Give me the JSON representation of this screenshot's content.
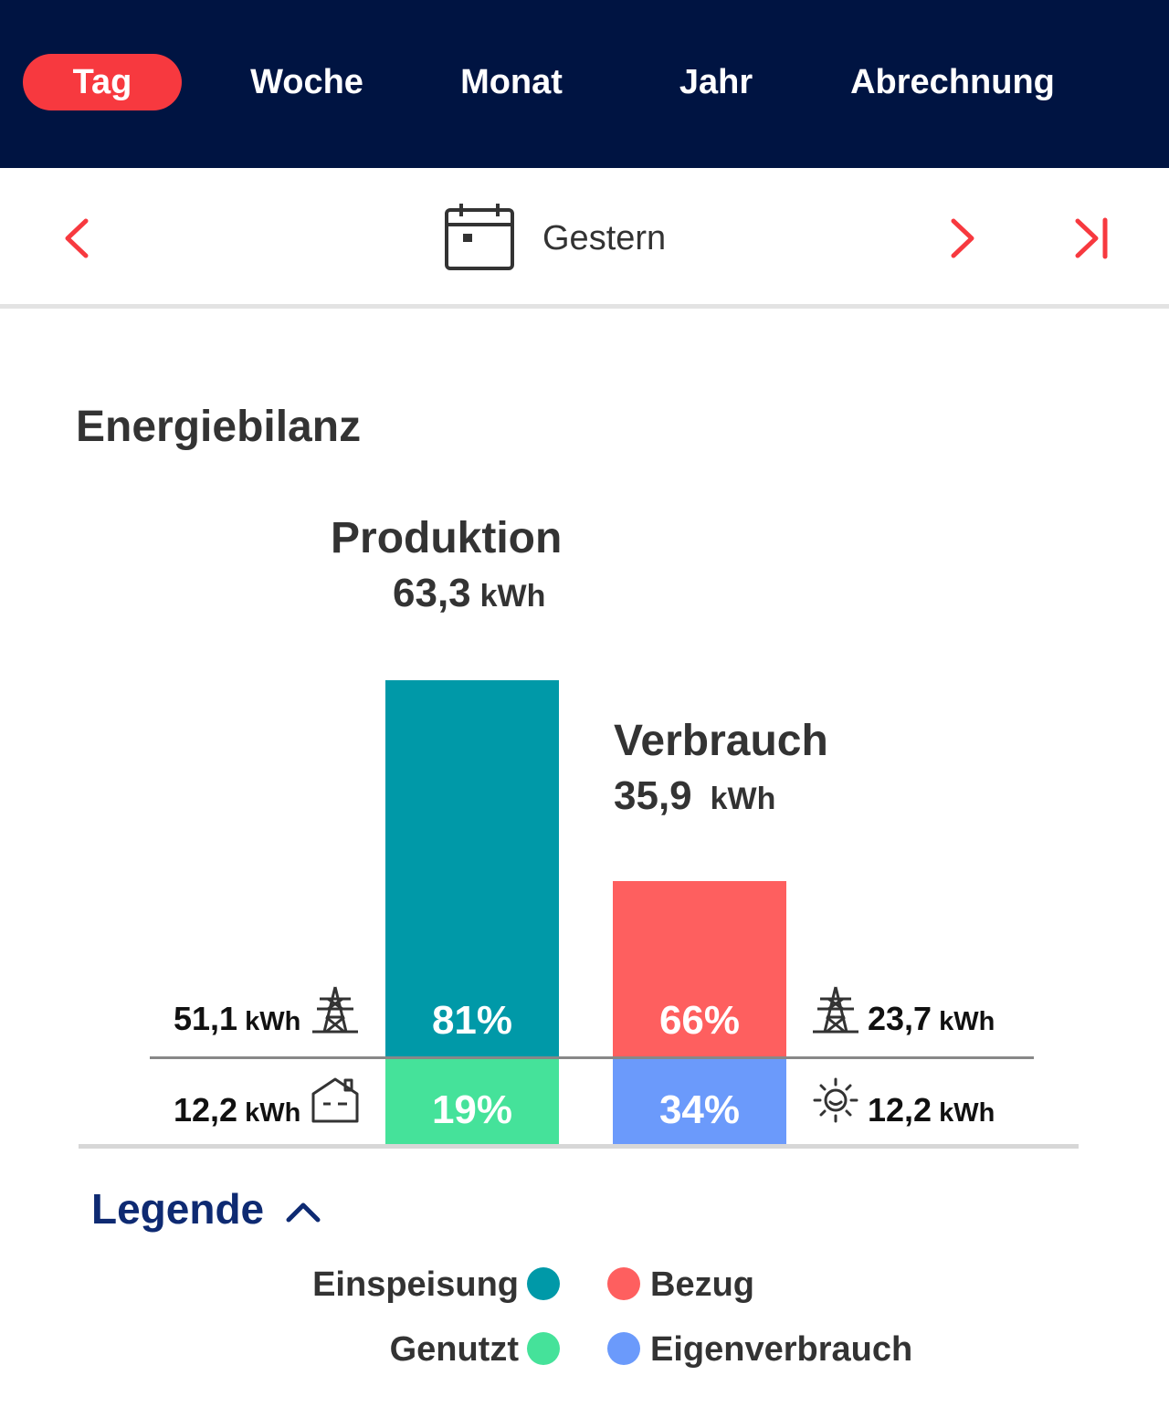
{
  "tabs": [
    {
      "label": "Tag",
      "active": true
    },
    {
      "label": "Woche",
      "active": false
    },
    {
      "label": "Monat",
      "active": false
    },
    {
      "label": "Jahr",
      "active": false
    },
    {
      "label": "Abrechnung",
      "active": false
    }
  ],
  "date_nav": {
    "label": "Gestern",
    "accent_color": "#f7393f"
  },
  "section_title": "Energiebilanz",
  "chart_data": {
    "type": "bar",
    "stacked": true,
    "unit": "kWh",
    "columns": [
      {
        "name": "Produktion",
        "total": "63,3",
        "total_value": 63.3,
        "unit": "kWh",
        "segments": [
          {
            "name": "Einspeisung",
            "percent_label": "81%",
            "percent": 81,
            "value_label": "51,1",
            "value": 51.1,
            "unit": "kWh",
            "icon": "power-pylon-icon",
            "color": "#0099a8"
          },
          {
            "name": "Genutzt",
            "percent_label": "19%",
            "percent": 19,
            "value_label": "12,2",
            "value": 12.2,
            "unit": "kWh",
            "icon": "house-icon",
            "color": "#45e29a"
          }
        ]
      },
      {
        "name": "Verbrauch",
        "total": "35,9",
        "total_value": 35.9,
        "unit": "kWh",
        "segments": [
          {
            "name": "Bezug",
            "percent_label": "66%",
            "percent": 66,
            "value_label": "23,7",
            "value": 23.7,
            "unit": "kWh",
            "icon": "power-pylon-icon",
            "color": "#fe5f5f"
          },
          {
            "name": "Eigenverbrauch",
            "percent_label": "34%",
            "percent": 34,
            "value_label": "12,2",
            "value": 12.2,
            "unit": "kWh",
            "icon": "sun-icon",
            "color": "#6b9afb"
          }
        ]
      }
    ]
  },
  "legend": {
    "title": "Legende",
    "items": [
      {
        "label": "Einspeisung",
        "color": "#0099a8"
      },
      {
        "label": "Bezug",
        "color": "#fe5f5f"
      },
      {
        "label": "Genutzt",
        "color": "#45e29a"
      },
      {
        "label": "Eigenverbrauch",
        "color": "#6b9afb"
      }
    ]
  }
}
